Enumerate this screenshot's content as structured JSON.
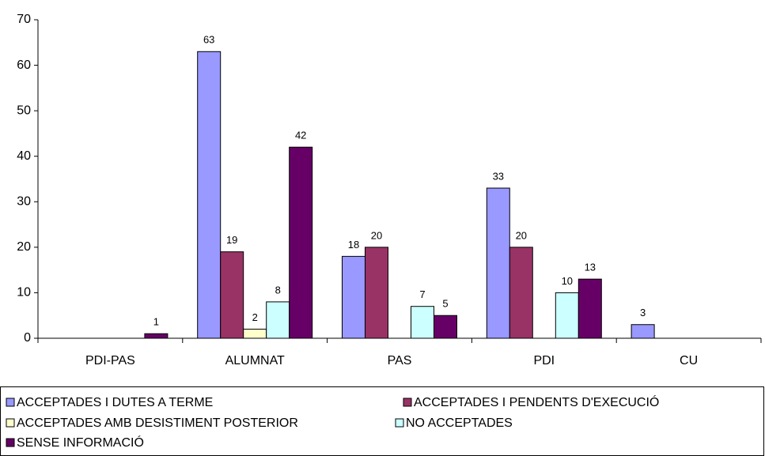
{
  "chart_data": {
    "type": "bar",
    "categories": [
      "PDI-PAS",
      "ALUMNAT",
      "PAS",
      "PDI",
      "CU"
    ],
    "series": [
      {
        "name": "ACCEPTADES I DUTES A TERME",
        "color": "#9999ff",
        "values": [
          null,
          63,
          18,
          33,
          3
        ]
      },
      {
        "name": "ACCEPTADES I PENDENTS D'EXECUCIÓ",
        "color": "#993366",
        "values": [
          null,
          19,
          20,
          20,
          null
        ]
      },
      {
        "name": "ACCEPTADES AMB DESISTIMENT POSTERIOR",
        "color": "#ffffcc",
        "values": [
          null,
          2,
          null,
          null,
          null
        ]
      },
      {
        "name": "NO ACCEPTADES",
        "color": "#ccffff",
        "values": [
          null,
          8,
          7,
          10,
          null
        ]
      },
      {
        "name": "SENSE INFORMACIÓ",
        "color": "#660066",
        "values": [
          1,
          42,
          5,
          13,
          null
        ]
      }
    ],
    "ylim": [
      0,
      70
    ],
    "yticks": [
      0,
      10,
      20,
      30,
      40,
      50,
      60,
      70
    ],
    "grid": false,
    "legend": "bottom"
  }
}
